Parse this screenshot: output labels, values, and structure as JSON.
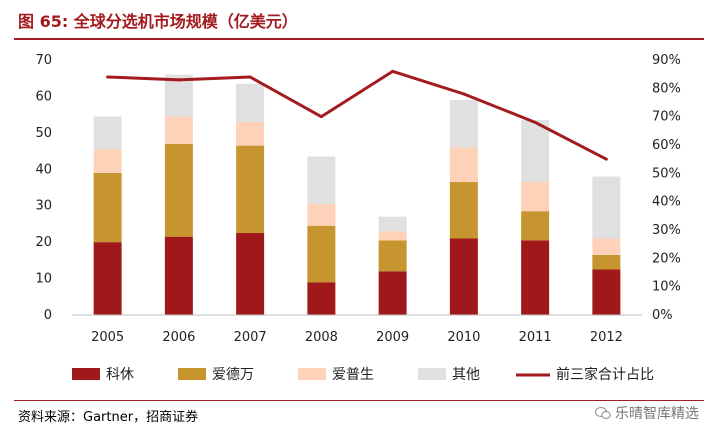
{
  "title": "图 65:  全球分选机市场规模（亿美元）",
  "source": "资料来源：Gartner，招商证券",
  "watermark": "乐晴智库精选",
  "colors": {
    "accent": "#a31b1e",
    "kexiu": "#a0191a",
    "aidewan": "#c69530",
    "aipusheng": "#fdd2b8",
    "other": "#e0e0e0",
    "share": "#a31b1e"
  },
  "chart_data": {
    "type": "bar",
    "stacked": true,
    "categories": [
      "2005",
      "2006",
      "2007",
      "2008",
      "2009",
      "2010",
      "2011",
      "2012"
    ],
    "series": [
      {
        "name": "科休",
        "values": [
          20,
          21.5,
          22.5,
          9,
          12,
          21,
          20.5,
          12.5
        ]
      },
      {
        "name": "爱德万",
        "values": [
          19,
          25.5,
          24,
          15.5,
          8.5,
          15.5,
          8,
          4
        ]
      },
      {
        "name": "爱普生",
        "values": [
          6.5,
          7.5,
          6.5,
          6,
          2.5,
          9.5,
          8,
          4.5
        ]
      },
      {
        "name": "其他",
        "values": [
          9,
          11.5,
          10.5,
          13,
          4,
          13,
          17,
          17
        ]
      }
    ],
    "line_series": {
      "name": "前三家合计占比",
      "axis": "right",
      "values": [
        0.84,
        0.83,
        0.84,
        0.7,
        0.86,
        0.78,
        0.68,
        0.55
      ]
    },
    "y_left": {
      "min": 0,
      "max": 70,
      "ticks": [
        "0",
        "10",
        "20",
        "30",
        "40",
        "50",
        "60",
        "70"
      ]
    },
    "y_right": {
      "min": 0,
      "max": 0.9,
      "ticks": [
        "0%",
        "10%",
        "20%",
        "30%",
        "40%",
        "50%",
        "60%",
        "70%",
        "80%",
        "90%"
      ]
    },
    "legend": [
      "科休",
      "爱德万",
      "爱普生",
      "其他",
      "前三家合计占比"
    ],
    "legend_position": "bottom"
  }
}
